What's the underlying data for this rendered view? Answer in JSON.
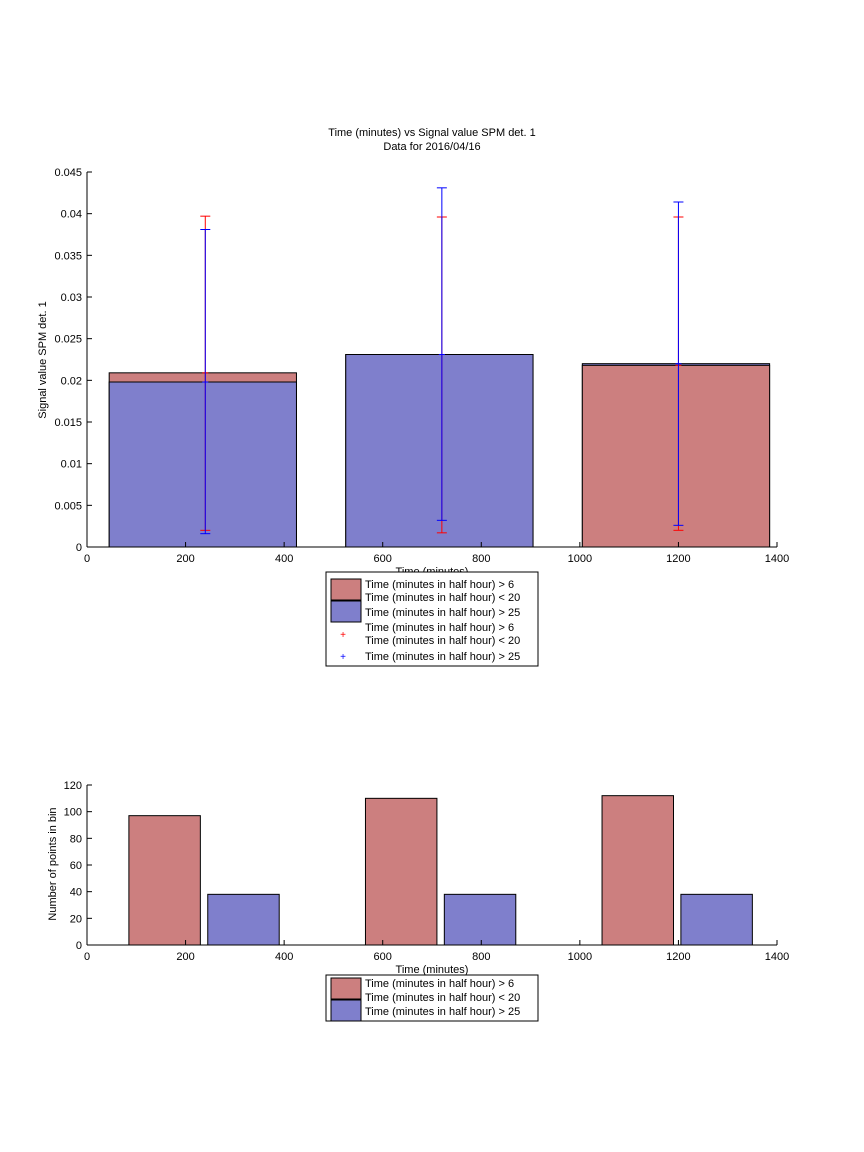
{
  "chart_data": [
    {
      "type": "bar",
      "title": "Time (minutes) vs Signal value SPM det. 1",
      "subtitle": "Data for 2016/04/16",
      "xlabel": "Time (minutes)",
      "ylabel": "Signal value SPM det. 1",
      "xlim": [
        0,
        1400
      ],
      "ylim": [
        0,
        0.045
      ],
      "xticks": [
        0,
        200,
        400,
        600,
        800,
        1000,
        1200,
        1400
      ],
      "xtick_labels": [
        "0",
        "200",
        "400",
        "600",
        "800",
        "1000",
        "1200",
        "1400"
      ],
      "yticks": [
        0,
        0.005,
        0.01,
        0.015,
        0.02,
        0.025,
        0.03,
        0.035,
        0.04,
        0.045
      ],
      "ytick_labels": [
        "0",
        "0.005",
        "0.01",
        "0.015",
        "0.02",
        "0.025",
        "0.03",
        "0.035",
        "0.04",
        "0.045"
      ],
      "grid": false,
      "legend_position": "below",
      "bar_range": [
        [
          45,
          425
        ],
        [
          525,
          905
        ],
        [
          1005,
          1385
        ]
      ],
      "x": [
        240,
        720,
        1200
      ],
      "series": [
        {
          "label": "Time (minutes in half hour) > 6\nTime (minutes in half hour) < 20",
          "color": "#cc7f7f",
          "values": [
            0.0209,
            0.0231,
            0.0218
          ],
          "error_low": [
            0.002,
            0.0017,
            0.002
          ],
          "error_high": [
            0.0397,
            0.0396,
            0.0396
          ],
          "error_color": "#ff0000"
        },
        {
          "label": "Time (minutes in half hour) > 25",
          "color": "#7f7fcc",
          "values": [
            0.0198,
            0.0231,
            0.022
          ],
          "error_low": [
            0.0016,
            0.0032,
            0.0026
          ],
          "error_high": [
            0.0381,
            0.0431,
            0.0414
          ],
          "error_color": "#0000ff"
        }
      ],
      "legend": [
        "Time (minutes in half hour) > 6",
        "Time (minutes in half hour) < 20",
        "Time (minutes in half hour) > 25",
        "Time (minutes in half hour) > 6",
        "Time (minutes in half hour) < 20",
        "Time (minutes in half hour) > 25"
      ]
    },
    {
      "type": "bar",
      "xlabel": "Time (minutes)",
      "ylabel": "Number of points in bin",
      "xlim": [
        0,
        1400
      ],
      "ylim": [
        0,
        120
      ],
      "xticks": [
        0,
        200,
        400,
        600,
        800,
        1000,
        1200,
        1400
      ],
      "xtick_labels": [
        "0",
        "200",
        "400",
        "600",
        "800",
        "1000",
        "1200",
        "1400"
      ],
      "yticks": [
        0,
        20,
        40,
        60,
        80,
        100,
        120
      ],
      "ytick_labels": [
        "0",
        "20",
        "40",
        "60",
        "80",
        "100",
        "120"
      ],
      "grid": false,
      "legend_position": "below",
      "series": [
        {
          "label": "Time (minutes in half hour) > 6\nTime (minutes in half hour) < 20",
          "color": "#cc7f7f",
          "bar_range": [
            [
              85,
              230
            ],
            [
              565,
              710
            ],
            [
              1045,
              1190
            ]
          ],
          "values": [
            97,
            110,
            112
          ]
        },
        {
          "label": "Time (minutes in half hour) > 25",
          "color": "#7f7fcc",
          "bar_range": [
            [
              245,
              390
            ],
            [
              725,
              870
            ],
            [
              1205,
              1350
            ]
          ],
          "values": [
            38,
            38,
            38
          ]
        }
      ],
      "legend": [
        "Time (minutes in half hour) > 6",
        "Time (minutes in half hour) < 20",
        "Time (minutes in half hour) > 25"
      ]
    }
  ]
}
